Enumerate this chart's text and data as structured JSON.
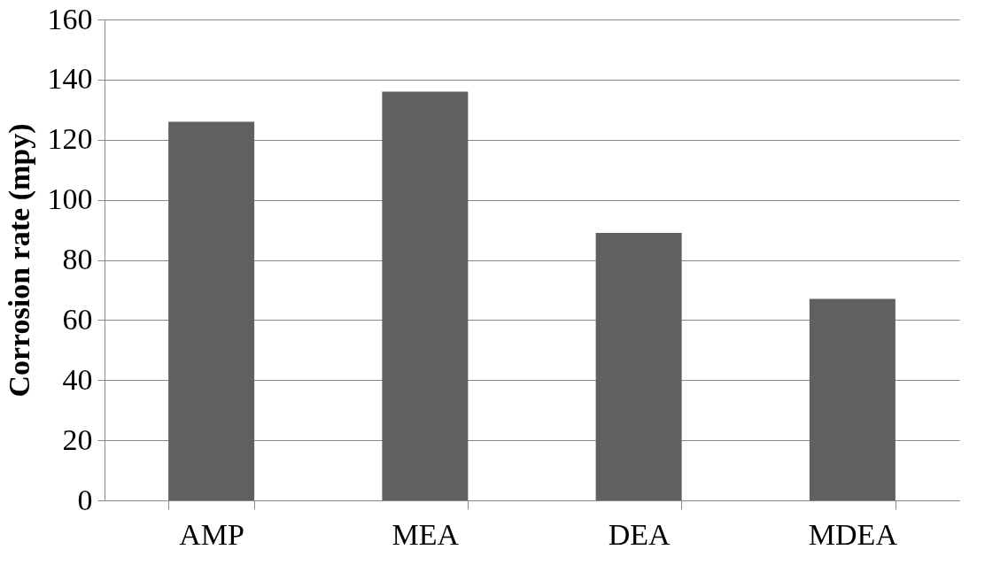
{
  "chart_data": {
    "type": "bar",
    "ylabel": "Corrosion rate (mpy)",
    "categories": [
      "AMP",
      "MEA",
      "DEA",
      "MDEA"
    ],
    "values": [
      126,
      136,
      89,
      67
    ],
    "color": "#606060",
    "ylim": [
      0,
      160
    ],
    "yticks": [
      0,
      20,
      40,
      60,
      80,
      100,
      120,
      140,
      160
    ],
    "grid": "y"
  }
}
